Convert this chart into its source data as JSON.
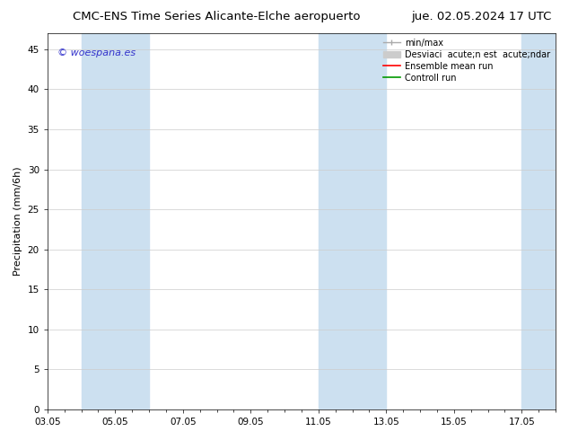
{
  "title_left": "CMC-ENS Time Series Alicante-Elche aeropuerto",
  "title_right": "jue. 02.05.2024 17 UTC",
  "xlabel": "",
  "ylabel": "Precipitation (mm/6h)",
  "ylim": [
    0,
    47
  ],
  "yticks": [
    0,
    5,
    10,
    15,
    20,
    25,
    30,
    35,
    40,
    45
  ],
  "xtick_labels": [
    "03.05",
    "05.05",
    "07.05",
    "09.05",
    "11.05",
    "13.05",
    "15.05",
    "17.05"
  ],
  "xtick_positions": [
    0,
    2,
    4,
    6,
    8,
    10,
    12,
    14
  ],
  "xlim": [
    0,
    15
  ],
  "shaded_bands": [
    {
      "x_start": 1,
      "x_end": 3,
      "color": "#cce0f0"
    },
    {
      "x_start": 8,
      "x_end": 10,
      "color": "#cce0f0"
    },
    {
      "x_start": 14,
      "x_end": 15,
      "color": "#cce0f0"
    }
  ],
  "watermark_text": "© woespana.es",
  "watermark_color": "#3333cc",
  "background_color": "#ffffff",
  "legend_label_1": "min/max",
  "legend_label_2": "Desviaci  acute;n est  acute;ndar",
  "legend_label_3": "Ensemble mean run",
  "legend_label_4": "Controll run",
  "legend_color_1": "#aaaaaa",
  "legend_color_2": "#cccccc",
  "legend_color_3": "#ff0000",
  "legend_color_4": "#009900",
  "grid_color": "#cccccc",
  "title_fontsize": 9.5,
  "axis_label_fontsize": 8,
  "tick_fontsize": 7.5,
  "legend_fontsize": 7,
  "watermark_fontsize": 8
}
